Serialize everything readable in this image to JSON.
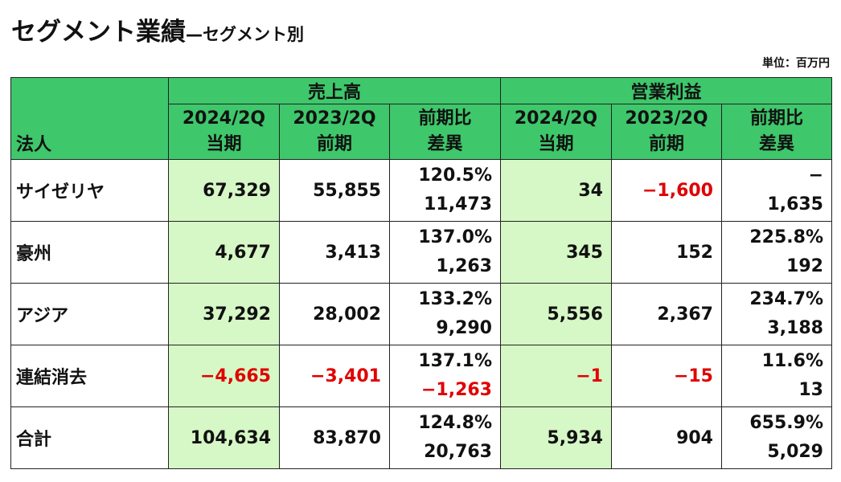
{
  "title": "セグメント業績",
  "subtitle": "—セグメント別",
  "unit": "単位：百万円",
  "header": {
    "corner": "法人",
    "group_sales": "売上高",
    "group_profit": "営業利益",
    "cols": [
      {
        "line1": "2024/2Q",
        "line2": "当期"
      },
      {
        "line1": "2023/2Q",
        "line2": "前期"
      },
      {
        "line1": "前期比",
        "line2": "差異"
      },
      {
        "line1": "2024/2Q",
        "line2": "当期"
      },
      {
        "line1": "2023/2Q",
        "line2": "前期"
      },
      {
        "line1": "前期比",
        "line2": "差異"
      }
    ]
  },
  "rows": [
    {
      "name": "サイゼリヤ",
      "s_cur": "67,329",
      "s_prev": "55,855",
      "s_ratio": "120.5%",
      "s_diff": "11,473",
      "p_cur": "34",
      "p_prev": "−1,600",
      "p_ratio": "−",
      "p_diff": "1,635"
    },
    {
      "name": "豪州",
      "s_cur": "4,677",
      "s_prev": "3,413",
      "s_ratio": "137.0%",
      "s_diff": "1,263",
      "p_cur": "345",
      "p_prev": "152",
      "p_ratio": "225.8%",
      "p_diff": "192"
    },
    {
      "name": "アジア",
      "s_cur": "37,292",
      "s_prev": "28,002",
      "s_ratio": "133.2%",
      "s_diff": "9,290",
      "p_cur": "5,556",
      "p_prev": "2,367",
      "p_ratio": "234.7%",
      "p_diff": "3,188"
    },
    {
      "name": "連結消去",
      "s_cur": "−4,665",
      "s_prev": "−3,401",
      "s_ratio": "137.1%",
      "s_diff": "−1,263",
      "p_cur": "−1",
      "p_prev": "−15",
      "p_ratio": "11.6%",
      "p_diff": "13"
    },
    {
      "name": "合計",
      "s_cur": "104,634",
      "s_prev": "83,870",
      "s_ratio": "124.8%",
      "s_diff": "20,763",
      "p_cur": "5,934",
      "p_prev": "904",
      "p_ratio": "655.9%",
      "p_diff": "5,029"
    }
  ],
  "colors": {
    "header_green": "#3ec76b",
    "current_period_light_green": "#d6f7c6",
    "negative_red": "#e00000"
  }
}
